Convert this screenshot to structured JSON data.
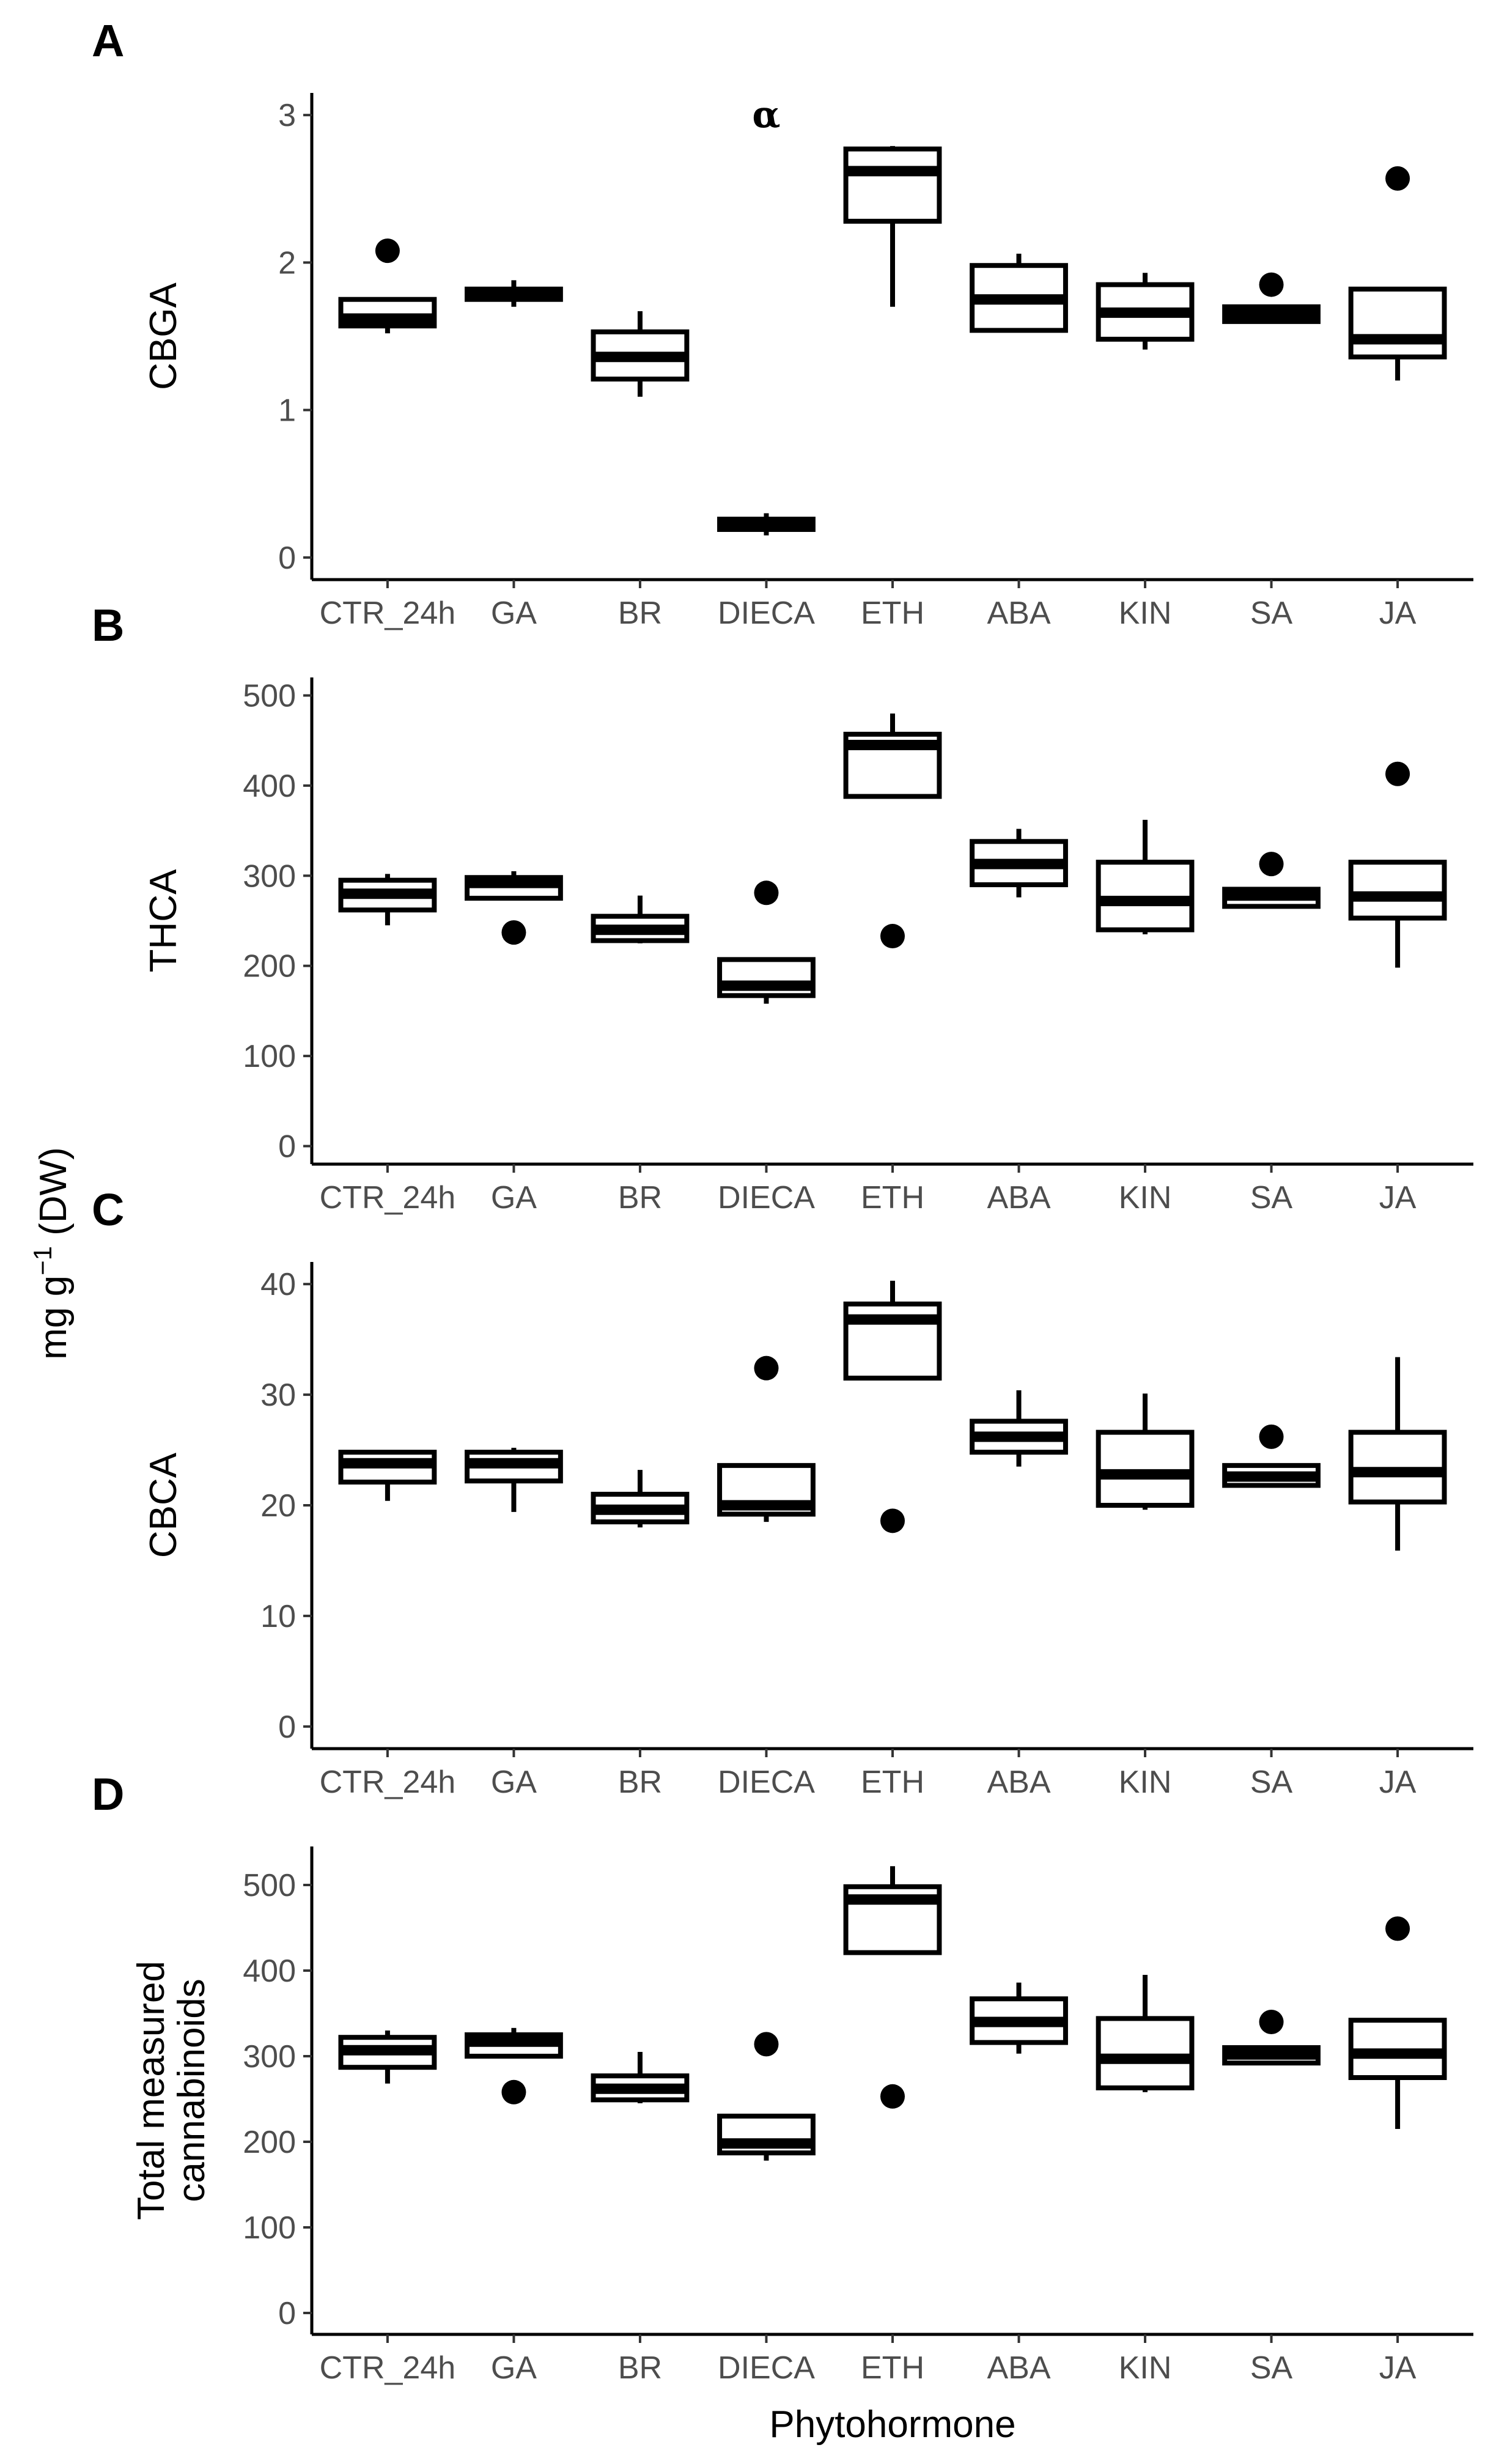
{
  "chart_data": [
    {
      "type": "boxplot",
      "panel_label": "A",
      "ylabel": "CBGA",
      "xlabel": "",
      "ylim": [
        -0.15,
        3.15
      ],
      "yticks": [
        0,
        1,
        2,
        3
      ],
      "categories": [
        "CTR_24h",
        "GA",
        "BR",
        "DIECA",
        "ETH",
        "ABA",
        "KIN",
        "SA",
        "JA"
      ],
      "boxes": [
        {
          "min": 1.52,
          "q1": 1.57,
          "median": 1.62,
          "q3": 1.75,
          "max": 1.75,
          "outliers": [
            2.08
          ]
        },
        {
          "min": 1.7,
          "q1": 1.75,
          "median": 1.79,
          "q3": 1.82,
          "max": 1.88,
          "outliers": []
        },
        {
          "min": 1.09,
          "q1": 1.21,
          "median": 1.36,
          "q3": 1.53,
          "max": 1.67,
          "outliers": []
        },
        {
          "min": 0.15,
          "q1": 0.19,
          "median": 0.22,
          "q3": 0.26,
          "max": 0.3,
          "outliers": []
        },
        {
          "min": 1.7,
          "q1": 2.28,
          "median": 2.62,
          "q3": 2.77,
          "max": 2.79,
          "outliers": []
        },
        {
          "min": 1.54,
          "q1": 1.54,
          "median": 1.75,
          "q3": 1.98,
          "max": 2.06,
          "outliers": []
        },
        {
          "min": 1.41,
          "q1": 1.48,
          "median": 1.66,
          "q3": 1.85,
          "max": 1.93,
          "outliers": []
        },
        {
          "min": 1.6,
          "q1": 1.6,
          "median": 1.65,
          "q3": 1.7,
          "max": 1.7,
          "outliers": [
            1.85
          ]
        },
        {
          "min": 1.2,
          "q1": 1.36,
          "median": 1.48,
          "q3": 1.82,
          "max": 1.82,
          "outliers": [
            2.57
          ]
        }
      ],
      "annotations": [
        {
          "text": "α",
          "category": "DIECA",
          "y": 3.0
        }
      ]
    },
    {
      "type": "boxplot",
      "panel_label": "B",
      "ylabel": "THCA",
      "xlabel": "",
      "ylim": [
        -20,
        520
      ],
      "yticks": [
        0,
        100,
        200,
        300,
        400,
        500
      ],
      "categories": [
        "CTR_24h",
        "GA",
        "BR",
        "DIECA",
        "ETH",
        "ABA",
        "KIN",
        "SA",
        "JA"
      ],
      "boxes": [
        {
          "min": 245,
          "q1": 262,
          "median": 280,
          "q3": 295,
          "max": 302,
          "outliers": []
        },
        {
          "min": 275,
          "q1": 275,
          "median": 292,
          "q3": 298,
          "max": 305,
          "outliers": [
            237
          ]
        },
        {
          "min": 225,
          "q1": 228,
          "median": 240,
          "q3": 255,
          "max": 278,
          "outliers": []
        },
        {
          "min": 158,
          "q1": 167,
          "median": 178,
          "q3": 207,
          "max": 207,
          "outliers": [
            281
          ]
        },
        {
          "min": 388,
          "q1": 388,
          "median": 445,
          "q3": 457,
          "max": 480,
          "outliers": [
            233
          ]
        },
        {
          "min": 276,
          "q1": 290,
          "median": 313,
          "q3": 338,
          "max": 352,
          "outliers": []
        },
        {
          "min": 235,
          "q1": 240,
          "median": 272,
          "q3": 315,
          "max": 362,
          "outliers": []
        },
        {
          "min": 266,
          "q1": 266,
          "median": 278,
          "q3": 285,
          "max": 285,
          "outliers": [
            313
          ]
        },
        {
          "min": 198,
          "q1": 253,
          "median": 277,
          "q3": 315,
          "max": 315,
          "outliers": [
            413
          ]
        }
      ]
    },
    {
      "type": "boxplot",
      "panel_label": "C",
      "ylabel": "CBCA",
      "xlabel": "",
      "ylim": [
        -2,
        42
      ],
      "yticks": [
        0,
        10,
        20,
        30,
        40
      ],
      "categories": [
        "CTR_24h",
        "GA",
        "BR",
        "DIECA",
        "ETH",
        "ABA",
        "KIN",
        "SA",
        "JA"
      ],
      "boxes": [
        {
          "min": 20.4,
          "q1": 22.1,
          "median": 23.8,
          "q3": 24.8,
          "max": 24.9,
          "outliers": []
        },
        {
          "min": 19.4,
          "q1": 22.2,
          "median": 23.8,
          "q3": 24.8,
          "max": 25.2,
          "outliers": []
        },
        {
          "min": 18.0,
          "q1": 18.5,
          "median": 19.6,
          "q3": 21.0,
          "max": 23.2,
          "outliers": []
        },
        {
          "min": 18.5,
          "q1": 19.2,
          "median": 20.0,
          "q3": 23.6,
          "max": 23.6,
          "outliers": [
            32.4
          ]
        },
        {
          "min": 31.5,
          "q1": 31.5,
          "median": 36.8,
          "q3": 38.2,
          "max": 40.3,
          "outliers": [
            18.6
          ]
        },
        {
          "min": 23.5,
          "q1": 24.8,
          "median": 26.2,
          "q3": 27.6,
          "max": 30.4,
          "outliers": []
        },
        {
          "min": 19.6,
          "q1": 20.0,
          "median": 22.8,
          "q3": 26.6,
          "max": 30.1,
          "outliers": []
        },
        {
          "min": 21.6,
          "q1": 21.8,
          "median": 22.6,
          "q3": 23.6,
          "max": 23.6,
          "outliers": [
            26.2
          ]
        },
        {
          "min": 15.9,
          "q1": 20.3,
          "median": 23.0,
          "q3": 26.6,
          "max": 33.4,
          "outliers": []
        }
      ]
    },
    {
      "type": "boxplot",
      "panel_label": "D",
      "ylabel": "Total measured cannabinoids",
      "ylabel_lines": [
        "Total measured",
        "cannabinoids"
      ],
      "xlabel": "Phytohormone",
      "ylim": [
        -25,
        545
      ],
      "yticks": [
        0,
        100,
        200,
        300,
        400,
        500
      ],
      "categories": [
        "CTR_24h",
        "GA",
        "BR",
        "DIECA",
        "ETH",
        "ABA",
        "KIN",
        "SA",
        "JA"
      ],
      "boxes": [
        {
          "min": 268,
          "q1": 287,
          "median": 307,
          "q3": 322,
          "max": 330,
          "outliers": []
        },
        {
          "min": 300,
          "q1": 300,
          "median": 317,
          "q3": 325,
          "max": 333,
          "outliers": [
            258
          ]
        },
        {
          "min": 245,
          "q1": 249,
          "median": 262,
          "q3": 277,
          "max": 305,
          "outliers": []
        },
        {
          "min": 178,
          "q1": 187,
          "median": 198,
          "q3": 230,
          "max": 230,
          "outliers": [
            314
          ]
        },
        {
          "min": 421,
          "q1": 421,
          "median": 483,
          "q3": 498,
          "max": 522,
          "outliers": [
            253
          ]
        },
        {
          "min": 303,
          "q1": 316,
          "median": 340,
          "q3": 367,
          "max": 386,
          "outliers": []
        },
        {
          "min": 258,
          "q1": 263,
          "median": 297,
          "q3": 344,
          "max": 395,
          "outliers": []
        },
        {
          "min": 290,
          "q1": 292,
          "median": 302,
          "q3": 310,
          "max": 310,
          "outliers": [
            340
          ]
        },
        {
          "min": 215,
          "q1": 275,
          "median": 303,
          "q3": 342,
          "max": 342,
          "outliers": [
            449
          ]
        }
      ]
    }
  ],
  "shared_ylabel": {
    "prefix": "mg g",
    "superscript": "−1",
    "suffix": " (DW)"
  }
}
